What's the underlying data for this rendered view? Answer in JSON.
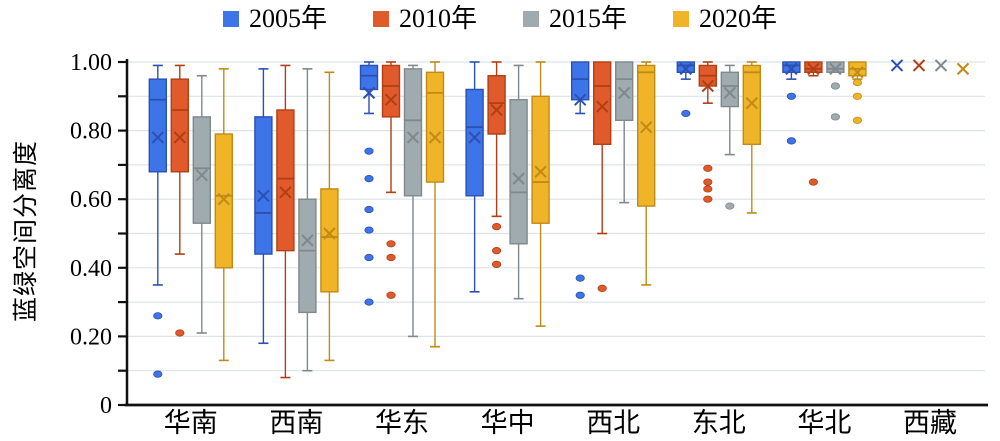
{
  "figure": {
    "ylabel": "蓝绿空间分离度",
    "legend": [
      {
        "label": "2005年",
        "color": "#3D74E8"
      },
      {
        "label": "2010年",
        "color": "#E05A2B"
      },
      {
        "label": "2015年",
        "color": "#A0ABB0"
      },
      {
        "label": "2020年",
        "color": "#F0B429"
      }
    ]
  },
  "chart_data": {
    "type": "boxplot",
    "title": "",
    "xlabel": "",
    "ylabel": "蓝绿空间分离度",
    "ylim": [
      0,
      1.0
    ],
    "grid": "horizontal, every 0.10, light gray",
    "legend_position": "top center",
    "yticks": [
      {
        "value": 0,
        "label": "0"
      },
      {
        "value": 0.2,
        "label": "0.20"
      },
      {
        "value": 0.4,
        "label": "0.40"
      },
      {
        "value": 0.6,
        "label": "0.60"
      },
      {
        "value": 0.8,
        "label": "0.80"
      },
      {
        "value": 1.0,
        "label": "1.00"
      }
    ],
    "categories": [
      "华南",
      "西南",
      "华东",
      "华中",
      "西北",
      "东北",
      "华北",
      "西藏"
    ],
    "series": [
      {
        "name": "2005年",
        "fill": "#3D74E8",
        "border": "#2B50B4",
        "boxes": [
          {
            "min": 0.35,
            "q1": 0.68,
            "median": 0.89,
            "q3": 0.95,
            "max": 0.99,
            "mean": 0.78,
            "outliers": [
              0.26,
              0.09
            ]
          },
          {
            "min": 0.18,
            "q1": 0.44,
            "median": 0.56,
            "q3": 0.84,
            "max": 0.98,
            "mean": 0.61,
            "outliers": []
          },
          {
            "min": 0.85,
            "q1": 0.92,
            "median": 0.96,
            "q3": 0.99,
            "max": 1.0,
            "mean": 0.91,
            "outliers": [
              0.74,
              0.66,
              0.57,
              0.51,
              0.43,
              0.3
            ]
          },
          {
            "min": 0.33,
            "q1": 0.61,
            "median": 0.81,
            "q3": 0.92,
            "max": 1.0,
            "mean": 0.78,
            "outliers": []
          },
          {
            "min": 0.85,
            "q1": 0.89,
            "median": 0.95,
            "q3": 1.0,
            "max": 1.0,
            "mean": 0.89,
            "outliers": [
              0.37,
              0.32
            ]
          },
          {
            "min": 0.95,
            "q1": 0.97,
            "median": 0.99,
            "q3": 1.0,
            "max": 1.0,
            "mean": 0.98,
            "outliers": [
              0.85
            ]
          },
          {
            "min": 0.95,
            "q1": 0.97,
            "median": 0.99,
            "q3": 1.0,
            "max": 1.0,
            "mean": 0.98,
            "outliers": [
              0.9,
              0.77
            ]
          },
          {
            "min": 0.99,
            "q1": 0.99,
            "median": 0.99,
            "q3": 0.99,
            "max": 0.99,
            "mean": 0.99,
            "outliers": []
          }
        ]
      },
      {
        "name": "2010年",
        "fill": "#E05A2B",
        "border": "#B23E14",
        "boxes": [
          {
            "min": 0.44,
            "q1": 0.68,
            "median": 0.86,
            "q3": 0.95,
            "max": 0.99,
            "mean": 0.78,
            "outliers": [
              0.21
            ]
          },
          {
            "min": 0.08,
            "q1": 0.45,
            "median": 0.66,
            "q3": 0.86,
            "max": 0.99,
            "mean": 0.62,
            "outliers": []
          },
          {
            "min": 0.62,
            "q1": 0.84,
            "median": 0.93,
            "q3": 0.99,
            "max": 1.0,
            "mean": 0.89,
            "outliers": [
              0.47,
              0.43,
              0.32
            ]
          },
          {
            "min": 0.55,
            "q1": 0.79,
            "median": 0.88,
            "q3": 0.96,
            "max": 1.0,
            "mean": 0.86,
            "outliers": [
              0.52,
              0.45,
              0.41
            ]
          },
          {
            "min": 0.5,
            "q1": 0.76,
            "median": 0.93,
            "q3": 1.0,
            "max": 1.0,
            "mean": 0.87,
            "outliers": [
              0.34
            ]
          },
          {
            "min": 0.88,
            "q1": 0.93,
            "median": 0.96,
            "q3": 0.99,
            "max": 1.0,
            "mean": 0.93,
            "outliers": [
              0.69,
              0.65,
              0.63,
              0.6
            ]
          },
          {
            "min": 0.96,
            "q1": 0.97,
            "median": 0.98,
            "q3": 1.0,
            "max": 1.0,
            "mean": 0.98,
            "outliers": [
              0.65
            ]
          },
          {
            "min": 0.99,
            "q1": 0.99,
            "median": 0.99,
            "q3": 0.99,
            "max": 0.99,
            "mean": 0.99,
            "outliers": []
          }
        ]
      },
      {
        "name": "2015年",
        "fill": "#A0ABB0",
        "border": "#7E898E",
        "boxes": [
          {
            "min": 0.21,
            "q1": 0.53,
            "median": 0.69,
            "q3": 0.84,
            "max": 0.96,
            "mean": 0.67,
            "outliers": []
          },
          {
            "min": 0.1,
            "q1": 0.27,
            "median": 0.45,
            "q3": 0.6,
            "max": 0.98,
            "mean": 0.48,
            "outliers": []
          },
          {
            "min": 0.2,
            "q1": 0.61,
            "median": 0.83,
            "q3": 0.98,
            "max": 0.99,
            "mean": 0.78,
            "outliers": []
          },
          {
            "min": 0.31,
            "q1": 0.47,
            "median": 0.62,
            "q3": 0.89,
            "max": 0.99,
            "mean": 0.66,
            "outliers": []
          },
          {
            "min": 0.59,
            "q1": 0.83,
            "median": 0.95,
            "q3": 1.0,
            "max": 1.0,
            "mean": 0.91,
            "outliers": []
          },
          {
            "min": 0.73,
            "q1": 0.87,
            "median": 0.93,
            "q3": 0.97,
            "max": 0.99,
            "mean": 0.91,
            "outliers": [
              0.58
            ]
          },
          {
            "min": 0.97,
            "q1": 0.97,
            "median": 0.98,
            "q3": 1.0,
            "max": 1.0,
            "mean": 0.98,
            "outliers": [
              0.93,
              0.84
            ]
          },
          {
            "min": 0.99,
            "q1": 0.99,
            "median": 0.99,
            "q3": 0.99,
            "max": 0.99,
            "mean": 0.99,
            "outliers": []
          }
        ]
      },
      {
        "name": "2020年",
        "fill": "#F0B429",
        "border": "#C08A14",
        "boxes": [
          {
            "min": 0.13,
            "q1": 0.4,
            "median": 0.61,
            "q3": 0.79,
            "max": 0.98,
            "mean": 0.6,
            "outliers": []
          },
          {
            "min": 0.13,
            "q1": 0.33,
            "median": 0.49,
            "q3": 0.63,
            "max": 0.97,
            "mean": 0.5,
            "outliers": []
          },
          {
            "min": 0.17,
            "q1": 0.65,
            "median": 0.91,
            "q3": 0.97,
            "max": 1.0,
            "mean": 0.78,
            "outliers": []
          },
          {
            "min": 0.23,
            "q1": 0.53,
            "median": 0.65,
            "q3": 0.9,
            "max": 1.0,
            "mean": 0.68,
            "outliers": []
          },
          {
            "min": 0.35,
            "q1": 0.58,
            "median": 0.97,
            "q3": 0.99,
            "max": 1.0,
            "mean": 0.81,
            "outliers": []
          },
          {
            "min": 0.56,
            "q1": 0.76,
            "median": 0.97,
            "q3": 0.99,
            "max": 1.0,
            "mean": 0.88,
            "outliers": []
          },
          {
            "min": 0.95,
            "q1": 0.96,
            "median": 0.98,
            "q3": 1.0,
            "max": 1.0,
            "mean": 0.97,
            "outliers": [
              0.94,
              0.9,
              0.83
            ]
          },
          {
            "min": 0.98,
            "q1": 0.98,
            "median": 0.98,
            "q3": 0.98,
            "max": 0.98,
            "mean": 0.98,
            "outliers": []
          }
        ]
      }
    ]
  }
}
